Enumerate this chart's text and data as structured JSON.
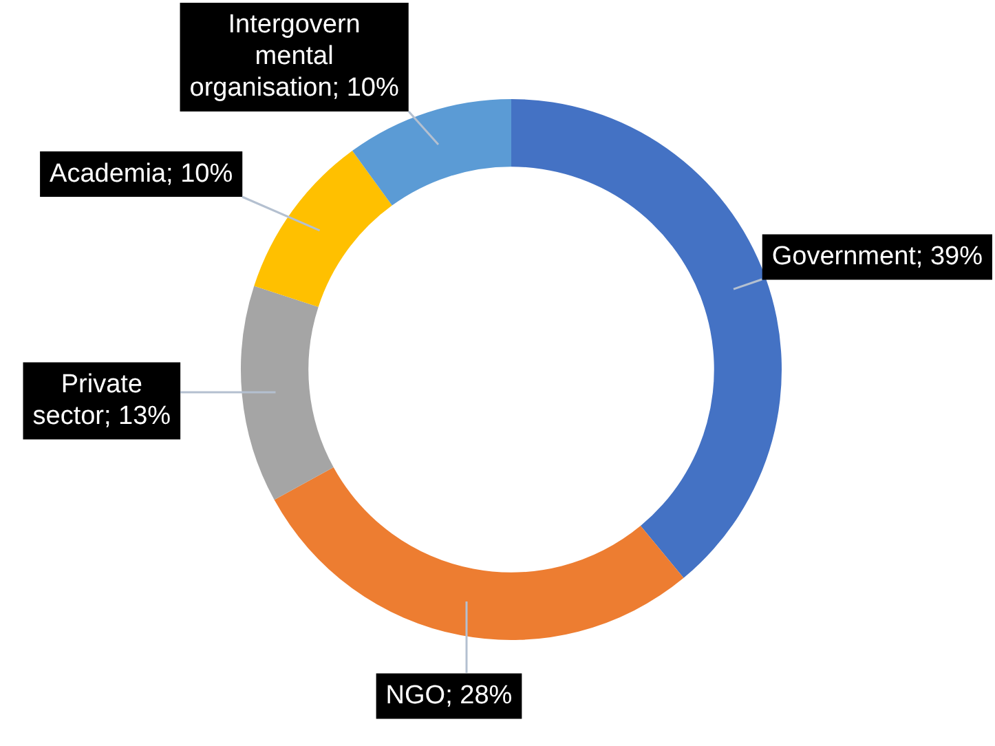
{
  "chart_data": {
    "type": "donut",
    "categories": [
      "Government",
      "NGO",
      "Private sector",
      "Academia",
      "Intergovernmental organisation"
    ],
    "values": [
      39,
      28,
      13,
      10,
      10
    ],
    "value_labels": [
      "39%",
      "28%",
      "13%",
      "10%",
      "10%"
    ],
    "colors": [
      "#4472c4",
      "#ed7d31",
      "#a5a5a5",
      "#ffc000",
      "#5b9bd5"
    ],
    "legend": false
  }
}
